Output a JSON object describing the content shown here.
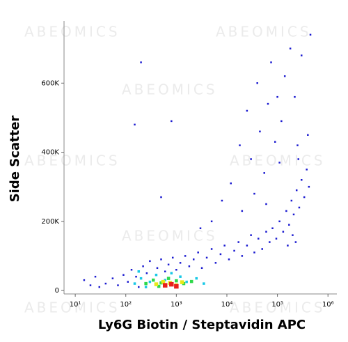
{
  "chart_data": {
    "type": "scatter",
    "xlabel": "Ly6G Biotin / Steptavidin APC",
    "ylabel": "Side Scatter",
    "watermark": "ABEOMICS",
    "xscale": "log",
    "xlim": [
      6,
      1500000
    ],
    "ylim": [
      -10000,
      780000
    ],
    "xticks": [
      {
        "value": 10,
        "label": "10¹"
      },
      {
        "value": 100,
        "label": "10²"
      },
      {
        "value": 1000,
        "label": "10³"
      },
      {
        "value": 10000,
        "label": "10⁴"
      },
      {
        "value": 100000,
        "label": "10⁵"
      },
      {
        "value": 1000000,
        "label": "10⁶"
      }
    ],
    "yticks": [
      0,
      {
        "value": 200000,
        "label": "200K"
      },
      {
        "value": 400000,
        "label": "400K"
      },
      {
        "value": 600000,
        "label": "600K"
      }
    ],
    "series": [
      {
        "color": "#1a1ad0",
        "x": [
          40,
          55,
          70,
          90,
          110,
          130,
          160,
          180,
          220,
          260,
          300,
          350,
          420,
          500,
          600,
          700,
          850,
          1000,
          1200,
          1500,
          1800,
          2200,
          2700,
          3200,
          4000,
          5000,
          6000,
          7500,
          9000,
          11000,
          14000,
          17000,
          20000,
          25000,
          30000,
          35000,
          42000,
          50000,
          60000,
          70000,
          80000,
          95000,
          110000,
          130000,
          150000,
          170000,
          190000,
          210000,
          240000,
          270000,
          300000,
          340000,
          380000,
          420000,
          260000,
          200000,
          160000,
          230000,
          12000,
          18000,
          25000,
          30000,
          40000,
          45000,
          55000,
          65000,
          75000,
          90000,
          100000,
          120000,
          140000,
          180000,
          220000,
          300000,
          400000,
          450000,
          8000,
          5000,
          3000,
          150,
          200,
          800,
          500,
          20000,
          35000,
          60000,
          110000,
          250000,
          15,
          20,
          25,
          30
        ],
        "y": [
          20000,
          35000,
          15000,
          45000,
          25000,
          60000,
          40000,
          10000,
          70000,
          50000,
          85000,
          30000,
          65000,
          90000,
          55000,
          75000,
          95000,
          60000,
          80000,
          100000,
          70000,
          90000,
          110000,
          65000,
          95000,
          120000,
          80000,
          105000,
          130000,
          90000,
          115000,
          140000,
          100000,
          130000,
          160000,
          110000,
          150000,
          120000,
          170000,
          140000,
          180000,
          150000,
          200000,
          170000,
          230000,
          190000,
          260000,
          220000,
          290000,
          240000,
          320000,
          270000,
          350000,
          300000,
          380000,
          160000,
          130000,
          140000,
          310000,
          420000,
          520000,
          380000,
          600000,
          460000,
          340000,
          540000,
          660000,
          430000,
          560000,
          490000,
          620000,
          700000,
          560000,
          680000,
          450000,
          740000,
          260000,
          200000,
          180000,
          480000,
          660000,
          490000,
          270000,
          230000,
          280000,
          250000,
          370000,
          420000,
          30000,
          15000,
          40000,
          10000
        ]
      },
      {
        "color": "#19c8e6",
        "x": [
          150,
          200,
          300,
          400,
          600,
          800,
          1200,
          1600,
          2500,
          3500,
          250,
          180
        ],
        "y": [
          20000,
          35000,
          25000,
          45000,
          30000,
          50000,
          40000,
          25000,
          35000,
          20000,
          10000,
          55000
        ]
      },
      {
        "color": "#2ed84a",
        "x": [
          250,
          350,
          500,
          700,
          1000,
          1400,
          2000,
          450
        ],
        "y": [
          20000,
          30000,
          22000,
          35000,
          28000,
          20000,
          26000,
          12000
        ]
      },
      {
        "color": "#e8e81a",
        "x": [
          400,
          550,
          750,
          1000,
          1300
        ],
        "y": [
          18000,
          25000,
          22000,
          15000,
          24000
        ]
      },
      {
        "color": "#e8201a",
        "x": [
          600,
          800,
          1000
        ],
        "y": [
          15000,
          18000,
          12000
        ]
      }
    ]
  }
}
